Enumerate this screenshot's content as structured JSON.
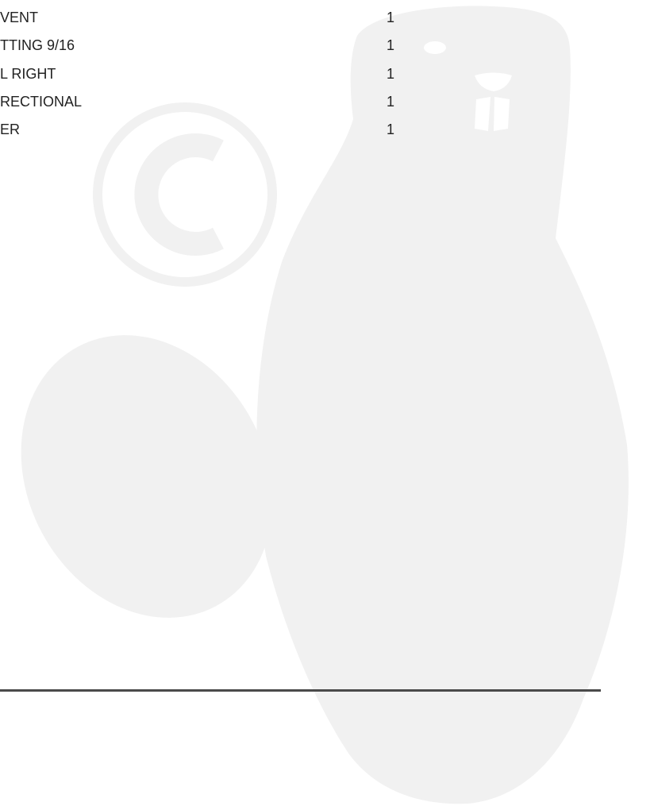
{
  "rows": [
    {
      "description": "VENT",
      "quantity": 1
    },
    {
      "description": "TTING 9/16",
      "quantity": 1
    },
    {
      "description": "L RIGHT",
      "quantity": 1
    },
    {
      "description": "RECTIONAL",
      "quantity": 1
    },
    {
      "description": "ER",
      "quantity": 1
    }
  ]
}
